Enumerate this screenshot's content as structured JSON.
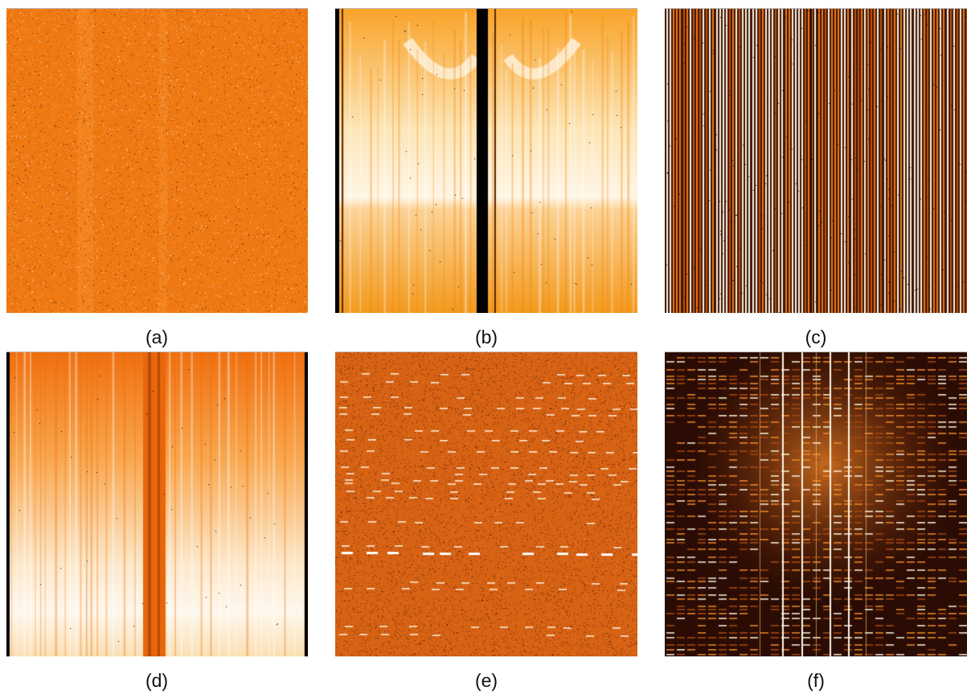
{
  "figure": {
    "panels": [
      {
        "id": "a",
        "caption": "(a)",
        "description": "uniform noisy orange frame with faint vertical bands and speckle"
      },
      {
        "id": "b",
        "caption": "(b)",
        "description": "flat-field style frame: light orange with dark edge columns, black central gap column, faint V-shaped light curves"
      },
      {
        "id": "c",
        "caption": "(c)",
        "description": "dense array of thin vertical white/orange stripes on dark brown background"
      },
      {
        "id": "d",
        "caption": "(d)",
        "description": "orange top fading to near-white bottom, central dark orange vertical band"
      },
      {
        "id": "e",
        "caption": "(e)",
        "description": "noisy orange background with rows of short horizontal white line segments"
      },
      {
        "id": "f",
        "caption": "(f)",
        "description": "dark brown frame with grid of bright emission segments and several bright vertical lines"
      }
    ]
  },
  "colors": {
    "orange": "#f07a10",
    "dark": "#2a0e04",
    "light": "#fff8ec",
    "black": "#000000"
  }
}
